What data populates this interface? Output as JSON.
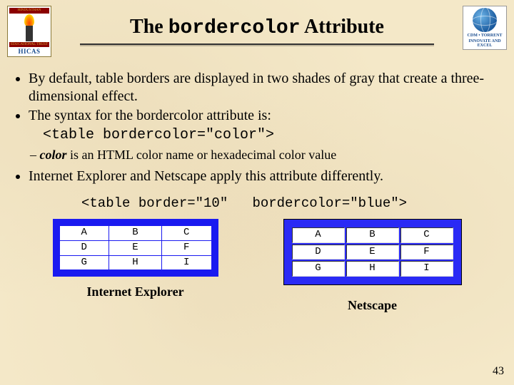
{
  "header": {
    "title_pre": "The ",
    "title_code": "bordercolor",
    "title_post": " Attribute",
    "logo_left": {
      "banner_top": "HINDUSTHAN",
      "banner_bottom": "EDUCATIONAL TRUST",
      "label": "HICAS"
    },
    "logo_right": {
      "line1": "CDM • TORRENT",
      "line2": "INNOVATE AND EXCEL"
    }
  },
  "bullets": {
    "b1": "By default, table borders are displayed in two shades of gray that create a three-dimensional effect.",
    "b2": "The syntax for the bordercolor attribute is:",
    "code": "<table bordercolor=\"color\">",
    "sub1_strong": "color",
    "sub1_rest": " is an HTML color name or hexadecimal color value",
    "b3": "Internet Explorer and Netscape apply this attribute differently."
  },
  "example": {
    "code_text": "<table border=\"10\"   bordercolor=\"blue\">",
    "rows": [
      [
        "A",
        "B",
        "C"
      ],
      [
        "D",
        "E",
        "F"
      ],
      [
        "G",
        "H",
        "I"
      ]
    ],
    "caption_ie": "Internet Explorer",
    "caption_ns": "Netscape",
    "border_color": "#1a1af0",
    "ns_fill": "#2a2af5"
  },
  "page_number": "43"
}
